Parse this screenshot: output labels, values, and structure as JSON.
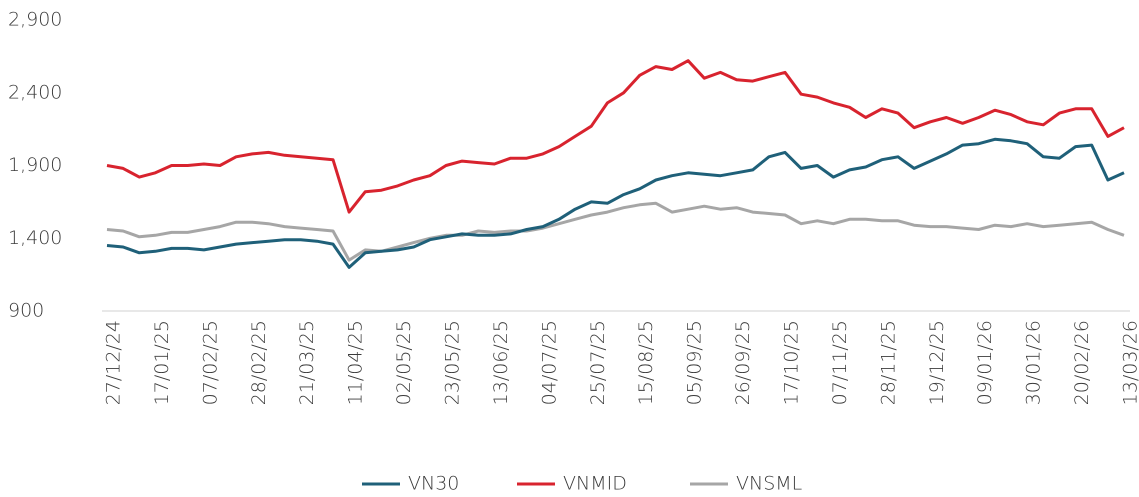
{
  "chart_data": {
    "type": "line",
    "categories": [
      "27/12/24",
      null,
      null,
      "17/01/25",
      null,
      null,
      "07/02/25",
      null,
      null,
      "28/02/25",
      null,
      null,
      "21/03/25",
      null,
      null,
      "11/04/25",
      null,
      null,
      "02/05/25",
      null,
      null,
      "23/05/25",
      null,
      null,
      "13/06/25",
      null,
      null,
      "04/07/25",
      null,
      null,
      "25/07/25",
      null,
      null,
      "15/08/25",
      null,
      null,
      "05/09/25",
      null,
      null,
      "26/09/25",
      null,
      null,
      "17/10/25",
      null,
      null,
      "07/11/25",
      null,
      null,
      "28/11/25",
      null,
      null,
      "19/12/25",
      null,
      null,
      "09/01/26",
      null,
      null,
      "30/01/26",
      null,
      null,
      "20/02/26",
      null,
      null,
      "13/03/26"
    ],
    "series": [
      {
        "name": "VN30",
        "color": "#1f6079",
        "values": [
          1350,
          1340,
          1300,
          1310,
          1330,
          1330,
          1320,
          1340,
          1360,
          1370,
          1380,
          1390,
          1390,
          1380,
          1360,
          1200,
          1300,
          1310,
          1320,
          1340,
          1390,
          1410,
          1430,
          1420,
          1420,
          1430,
          1460,
          1480,
          1530,
          1600,
          1650,
          1640,
          1700,
          1740,
          1800,
          1830,
          1850,
          1840,
          1830,
          1850,
          1870,
          1960,
          1990,
          1880,
          1900,
          1820,
          1870,
          1890,
          1940,
          1960,
          1880,
          1930,
          1980,
          2040,
          2050,
          2080,
          2070,
          2050,
          1960,
          1950,
          2030,
          2040,
          1800,
          1850
        ]
      },
      {
        "name": "VNMID",
        "color": "#d8232e",
        "values": [
          1900,
          1880,
          1820,
          1850,
          1900,
          1900,
          1910,
          1900,
          1960,
          1980,
          1990,
          1970,
          1960,
          1950,
          1940,
          1580,
          1720,
          1730,
          1760,
          1800,
          1830,
          1900,
          1930,
          1920,
          1910,
          1950,
          1950,
          1980,
          2030,
          2100,
          2170,
          2330,
          2400,
          2520,
          2580,
          2560,
          2620,
          2500,
          2540,
          2490,
          2480,
          2510,
          2540,
          2390,
          2370,
          2330,
          2300,
          2230,
          2290,
          2260,
          2160,
          2200,
          2230,
          2190,
          2230,
          2280,
          2250,
          2200,
          2180,
          2260,
          2290,
          2290,
          2100,
          2160
        ]
      },
      {
        "name": "VNSML",
        "color": "#a6a6a6",
        "values": [
          1460,
          1450,
          1410,
          1420,
          1440,
          1440,
          1460,
          1480,
          1510,
          1510,
          1500,
          1480,
          1470,
          1460,
          1450,
          1250,
          1320,
          1310,
          1340,
          1370,
          1400,
          1420,
          1420,
          1450,
          1440,
          1450,
          1450,
          1470,
          1500,
          1530,
          1560,
          1580,
          1610,
          1630,
          1640,
          1580,
          1600,
          1620,
          1600,
          1610,
          1580,
          1570,
          1560,
          1500,
          1520,
          1500,
          1530,
          1530,
          1520,
          1520,
          1490,
          1480,
          1480,
          1470,
          1460,
          1490,
          1480,
          1500,
          1480,
          1490,
          1500,
          1510,
          1460,
          1420
        ]
      }
    ],
    "ylim": [
      900,
      2900
    ],
    "yticks": [
      900,
      {
        "value": 1400,
        "label": "1,400"
      },
      {
        "value": 1900,
        "label": "1,900"
      },
      {
        "value": 2400,
        "label": "2,400"
      },
      {
        "value": 2900,
        "label": "2,900"
      }
    ],
    "legend": "bottom"
  }
}
